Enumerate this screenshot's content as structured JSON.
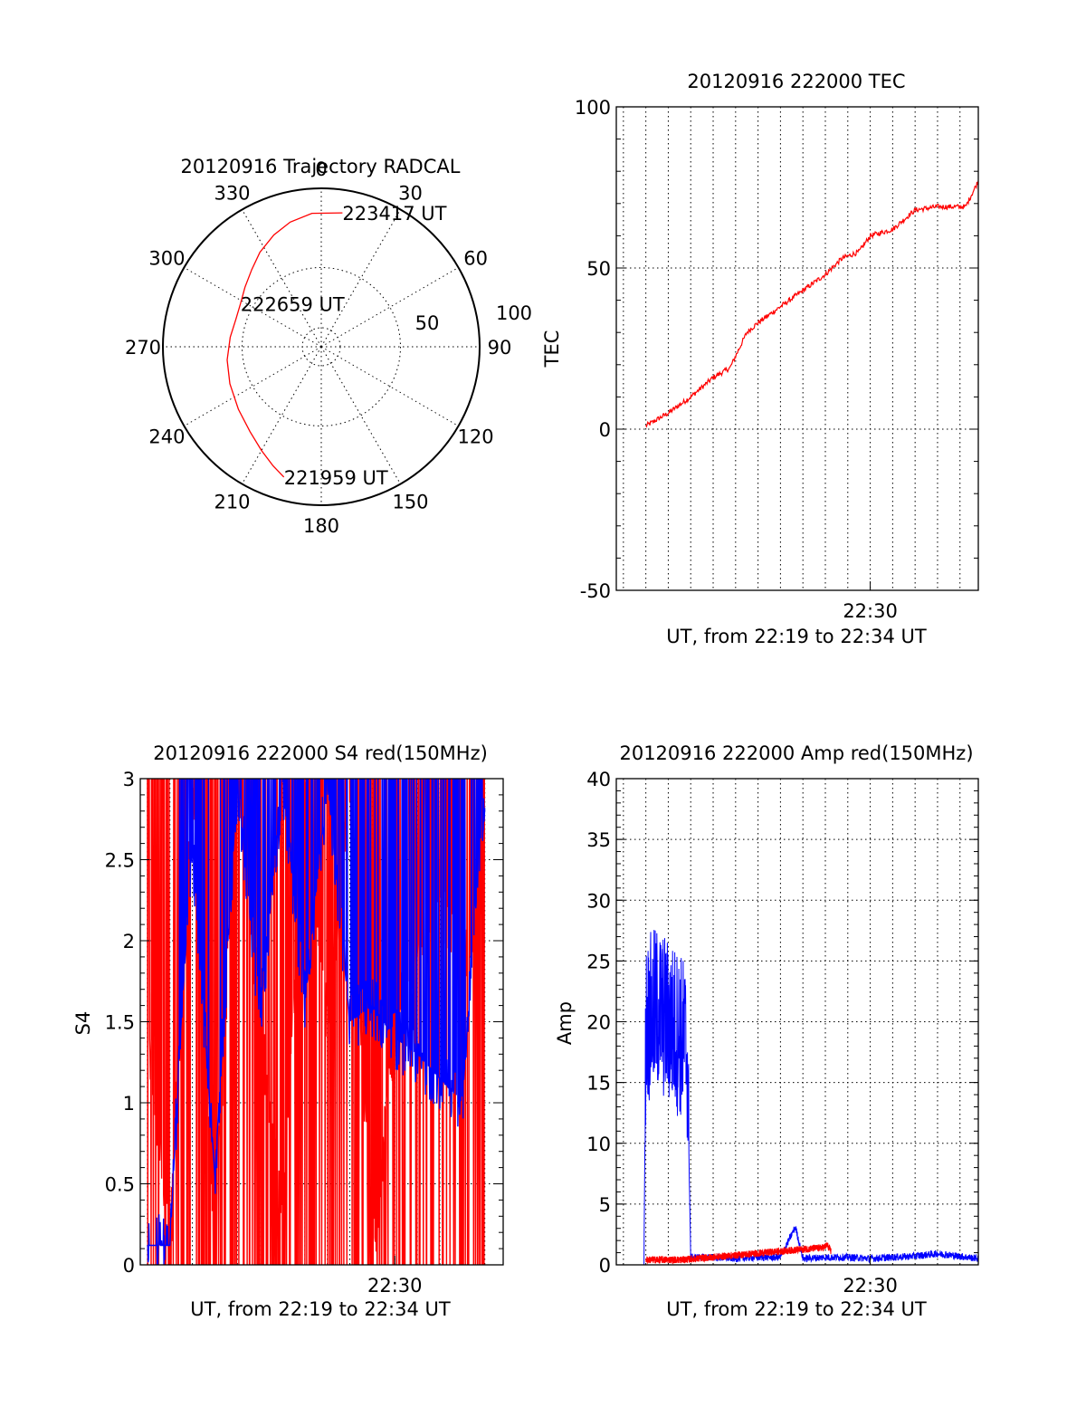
{
  "colors": {
    "red": "#ff0000",
    "blue": "#0000ff",
    "axes": "#000000"
  },
  "chart_data": [
    {
      "id": "trajectory",
      "type": "scatter",
      "subtype": "polar",
      "title": "20120916 Trajectory RADCAL",
      "azimuth_labels": [
        "0",
        "30",
        "60",
        "90",
        "120",
        "150",
        "180",
        "210",
        "240",
        "270",
        "300",
        "330"
      ],
      "radius_labels": [
        "50",
        "100"
      ],
      "series": [
        {
          "color": "#ff0000",
          "points": [
            {
              "azimuth": 196,
              "elevation": 13
            },
            {
              "azimuth": 202,
              "elevation": 17
            },
            {
              "azimuth": 210,
              "elevation": 22
            },
            {
              "azimuth": 220,
              "elevation": 27
            },
            {
              "azimuth": 233,
              "elevation": 31
            },
            {
              "azimuth": 248,
              "elevation": 34
            },
            {
              "azimuth": 262,
              "elevation": 36
            },
            {
              "azimuth": 276,
              "elevation": 38
            },
            {
              "azimuth": 288,
              "elevation": 39
            },
            {
              "azimuth": 298,
              "elevation": 38
            },
            {
              "azimuth": 308,
              "elevation": 35
            },
            {
              "azimuth": 318,
              "elevation": 31
            },
            {
              "azimuth": 327,
              "elevation": 26
            },
            {
              "azimuth": 337,
              "elevation": 21
            },
            {
              "azimuth": 346,
              "elevation": 17
            },
            {
              "azimuth": 356,
              "elevation": 14
            },
            {
              "azimuth": 9,
              "elevation": 13
            }
          ]
        }
      ],
      "annotations": [
        {
          "text": "223417 UT",
          "azimuth": 9,
          "elevation": 13
        },
        {
          "text": "222659 UT",
          "azimuth": 298,
          "elevation": 38
        },
        {
          "text": "221959 UT",
          "azimuth": 196,
          "elevation": 13
        }
      ]
    },
    {
      "id": "tec",
      "type": "line",
      "title": "20120916 222000 TEC",
      "xlabel": "UT, from 22:19 to 22:34 UT",
      "ylabel": "TEC",
      "xlim": [
        "22:18:41",
        "22:34:49"
      ],
      "ylim": [
        -50,
        100
      ],
      "yticks": [
        "100",
        "50",
        "0",
        "-50"
      ],
      "xticks": [
        {
          "label": "22:30",
          "x": "22:30:00"
        }
      ],
      "series": [
        {
          "color": "#ff0000",
          "x": [
            "22:20:00",
            "22:21:00",
            "22:22:00",
            "22:23:00",
            "22:23:45",
            "22:24:30",
            "22:25:00",
            "22:26:00",
            "22:27:00",
            "22:28:00",
            "22:28:45",
            "22:29:30",
            "22:30:00",
            "22:31:00",
            "22:32:00",
            "22:33:00",
            "22:33:30",
            "22:34:15",
            "22:34:49"
          ],
          "values": [
            1,
            5,
            10,
            16,
            19,
            30,
            33,
            38,
            43,
            48,
            53,
            55,
            60,
            62,
            68,
            69,
            69,
            69,
            77
          ]
        }
      ]
    },
    {
      "id": "s4",
      "type": "line",
      "title": "20120916 222000 S4 red(150MHz)",
      "xlabel": "UT, from 22:19 to 22:34 UT",
      "ylabel": "S4",
      "xlim": [
        "22:18:41",
        "22:34:49"
      ],
      "ylim": [
        0,
        3
      ],
      "yticks": [
        "3",
        "2.5",
        "2",
        "1.5",
        "1",
        "0.5",
        "0"
      ],
      "xticks": [
        {
          "label": "22:30",
          "x": "22:30:00"
        }
      ],
      "series": [
        {
          "color": "#ff0000",
          "x": [
            "22:19:00",
            "22:20:00",
            "22:21:00",
            "22:22:00",
            "22:23:00",
            "22:24:00",
            "22:25:00",
            "22:26:00",
            "22:27:00",
            "22:28:00",
            "22:29:00",
            "22:30:00",
            "22:31:00",
            "22:32:00",
            "22:33:00",
            "22:34:00"
          ],
          "values": [
            1.5,
            0.1,
            3.0,
            0.2,
            3.0,
            1.5,
            0.3,
            3.0,
            1.5,
            3.0,
            0.0,
            1.5,
            2.0,
            2.2,
            1.9,
            2.1
          ]
        },
        {
          "color": "#0000ff",
          "x": [
            "22:19:00",
            "22:20:00",
            "22:20:30",
            "22:21:00",
            "22:22:00",
            "22:23:00",
            "22:24:00",
            "22:25:00",
            "22:26:00",
            "22:27:00",
            "22:28:00",
            "22:29:00",
            "22:30:00",
            "22:31:00",
            "22:32:00",
            "22:33:00",
            "22:34:00"
          ],
          "values": [
            0.12,
            0.12,
            1.5,
            2.6,
            0.55,
            3.0,
            1.5,
            3.0,
            1.6,
            3.0,
            1.5,
            1.6,
            1.4,
            1.3,
            1.15,
            1.0,
            3.0
          ]
        }
      ]
    },
    {
      "id": "amp",
      "type": "line",
      "title": "20120916 222000 Amp red(150MHz)",
      "xlabel": "UT, from 22:19 to 22:34 UT",
      "ylabel": "Amp",
      "xlim": [
        "22:18:41",
        "22:34:49"
      ],
      "ylim": [
        0,
        40
      ],
      "yticks": [
        "40",
        "35",
        "30",
        "25",
        "20",
        "15",
        "10",
        "5",
        "0"
      ],
      "xticks": [
        {
          "label": "22:30",
          "x": "22:30:00"
        }
      ],
      "series": [
        {
          "color": "#0000ff",
          "x": [
            "22:19:55",
            "22:20:00",
            "22:20:30",
            "22:21:00",
            "22:21:30",
            "22:21:50",
            "22:22:00",
            "22:23:00",
            "22:24:00",
            "22:25:00",
            "22:26:00",
            "22:26:40",
            "22:27:00",
            "22:28:00",
            "22:29:00",
            "22:30:00",
            "22:31:00",
            "22:32:00",
            "22:33:00",
            "22:34:49"
          ],
          "values": [
            0,
            20,
            21,
            20,
            19,
            18,
            0.5,
            0.5,
            0.4,
            0.5,
            0.5,
            3.0,
            0.4,
            0.5,
            0.5,
            0.4,
            0.5,
            0.6,
            0.8,
            0.4
          ]
        },
        {
          "color": "#ff0000",
          "x": [
            "22:20:00",
            "22:20:30",
            "22:21:00",
            "22:21:40",
            "22:27:55",
            "22:28:05",
            "22:28:15"
          ],
          "values": [
            0.3,
            0.3,
            0.3,
            0.3,
            1.3,
            1.5,
            1.0
          ]
        }
      ]
    }
  ]
}
